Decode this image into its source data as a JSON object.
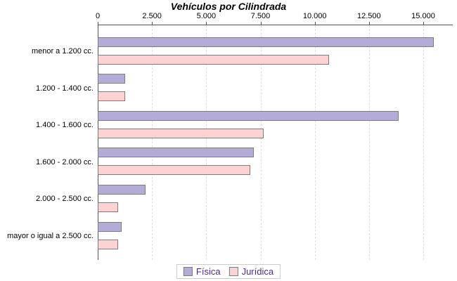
{
  "title": "Vehículos por Cilindrada",
  "chart_data": {
    "type": "bar",
    "orientation": "horizontal",
    "title": "Vehículos por Cilindrada",
    "xlabel": "",
    "ylabel": "",
    "categories": [
      "menor a 1.200 cc.",
      "1.200 - 1.400 cc.",
      "1.400 - 1.600 cc.",
      "1.600 - 2.000 cc.",
      "2.000 - 2.500 cc.",
      "mayor o igual a 2.500 cc."
    ],
    "series": [
      {
        "name": "Física",
        "color": "#b5abd7",
        "border_color": "#7d7d7d",
        "values": [
          15500,
          1270,
          13850,
          7200,
          2190,
          1110
        ]
      },
      {
        "name": "Jurídica",
        "color": "#fcd2d2",
        "border_color": "#7d7d7d",
        "values": [
          10650,
          1250,
          7630,
          7040,
          950,
          930
        ]
      }
    ],
    "xlim": [
      0,
      16350
    ],
    "x_ticks": [
      0,
      2500,
      5000,
      7500,
      10000,
      12500,
      15000
    ],
    "x_tick_labels": [
      "0",
      "2.500",
      "5.000",
      "7.500",
      "10.000",
      "12.500",
      "15.000"
    ],
    "grid": true,
    "grid_style": "dashed",
    "legend_position": "bottom"
  },
  "legend": {
    "items": [
      {
        "label": "Física",
        "color": "#b5abd7"
      },
      {
        "label": "Jurídica",
        "color": "#fcd2d2"
      }
    ]
  },
  "colors": {
    "background": "#ffffff",
    "axis": "#555555",
    "gridline": "#dedede",
    "bar_border": "#7d7d7d",
    "legend_text": "#4b2d83",
    "title_text": "#000000"
  }
}
